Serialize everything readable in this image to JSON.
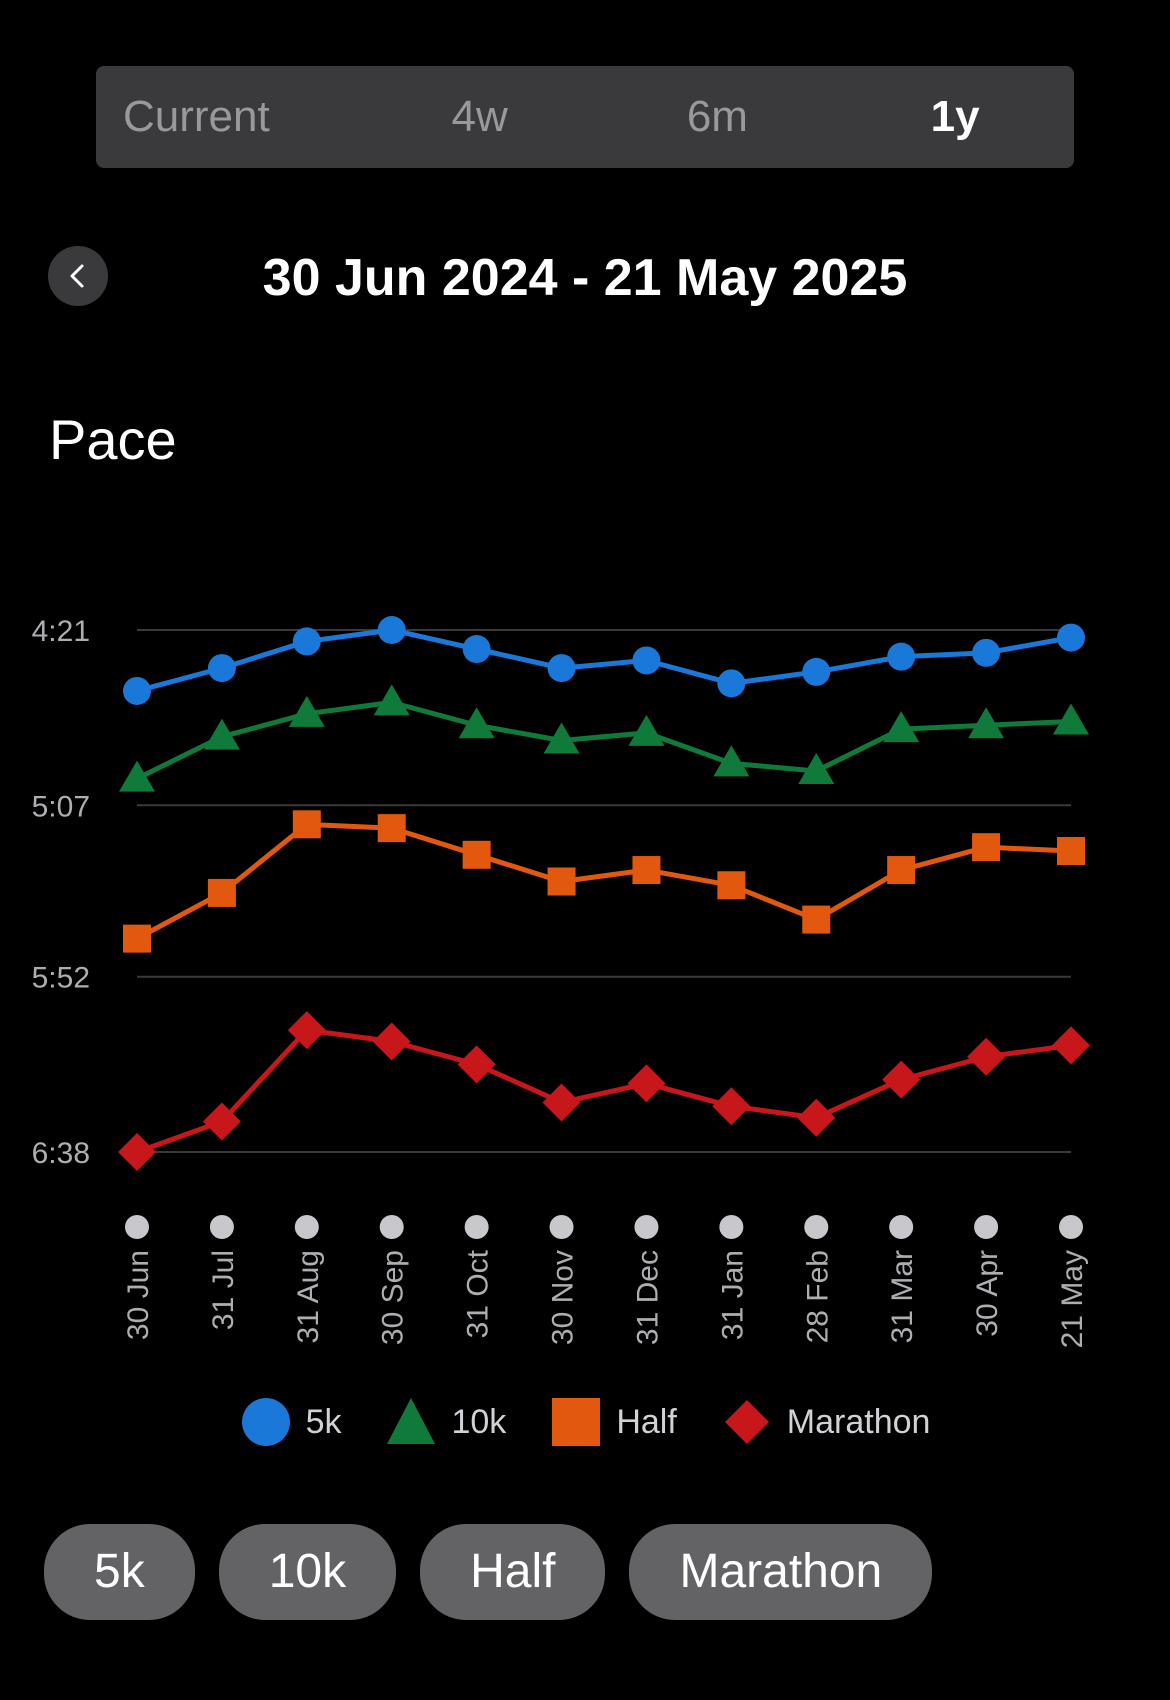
{
  "segments": [
    "Current",
    "4w",
    "6m",
    "1y"
  ],
  "active_segment": "1y",
  "date_range": "30 Jun 2024 - 21 May 2025",
  "section_title": "Pace",
  "filter_pills": [
    "5k",
    "10k",
    "Half",
    "Marathon"
  ],
  "chart_data": {
    "type": "line",
    "title": "",
    "xlabel": "",
    "ylabel": "",
    "y_axis_inverted": true,
    "y_ticks": [
      "4:21",
      "5:07",
      "5:52",
      "6:38"
    ],
    "y_ticks_seconds": [
      261,
      307,
      352,
      398
    ],
    "ylim_seconds": [
      261,
      398
    ],
    "grid": true,
    "legend_position": "bottom",
    "categories": [
      "30 Jun",
      "31 Jul",
      "31 Aug",
      "30 Sep",
      "31 Oct",
      "30 Nov",
      "31 Dec",
      "31 Jan",
      "28 Feb",
      "31 Mar",
      "30 Apr",
      "21 May"
    ],
    "series": [
      {
        "name": "5k",
        "color": "#1a78d9",
        "marker": "circle",
        "values": [
          "4:37",
          "4:31",
          "4:24",
          "4:21",
          "4:26",
          "4:31",
          "4:29",
          "4:35",
          "4:32",
          "4:28",
          "4:27",
          "4:23"
        ]
      },
      {
        "name": "10k",
        "color": "#0f7a3a",
        "marker": "triangle",
        "values": [
          "5:00",
          "4:49",
          "4:43",
          "4:40",
          "4:46",
          "4:50",
          "4:48",
          "4:56",
          "4:58",
          "4:47",
          "4:46",
          "4:45"
        ]
      },
      {
        "name": "Half",
        "color": "#e2580f",
        "marker": "square",
        "values": [
          "5:42",
          "5:30",
          "5:12",
          "5:13",
          "5:20",
          "5:27",
          "5:24",
          "5:28",
          "5:37",
          "5:24",
          "5:18",
          "5:19"
        ]
      },
      {
        "name": "Marathon",
        "color": "#c8171a",
        "marker": "diamond",
        "values": [
          "6:38",
          "6:30",
          "6:06",
          "6:09",
          "6:15",
          "6:25",
          "6:20",
          "6:26",
          "6:29",
          "6:19",
          "6:13",
          "6:10"
        ]
      }
    ]
  }
}
